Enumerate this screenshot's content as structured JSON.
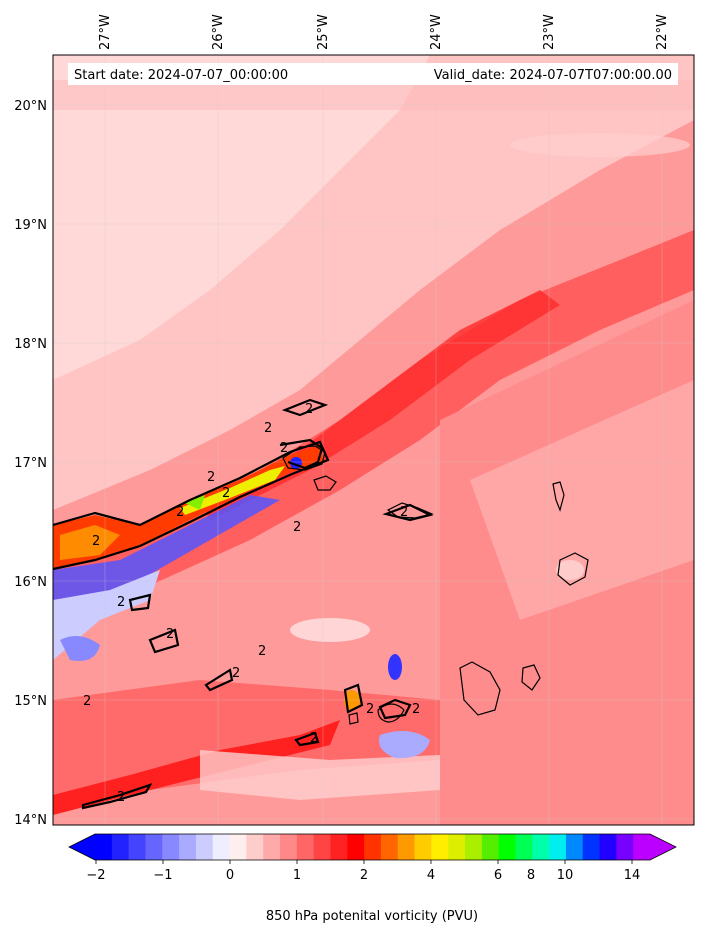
{
  "header": {
    "start_date": "Start date: 2024-07-07_00:00:00",
    "valid_date": "Valid_date: 2024-07-07T07:00:00.00"
  },
  "map": {
    "lon_labels": [
      "27°W",
      "26°W",
      "25°W",
      "24°W",
      "23°W",
      "22°W"
    ],
    "lat_labels": [
      "20°N",
      "19°N",
      "18°N",
      "17°N",
      "16°N",
      "15°N",
      "14°N"
    ],
    "contour_label": "2"
  },
  "colorbar": {
    "label": "850 hPa potenital vorticity (PVU)",
    "tick_labels": [
      "−2",
      "−1",
      "0",
      "1",
      "2",
      "4",
      "6",
      "8",
      "10",
      "14"
    ],
    "colors": [
      "#0000ff",
      "#2222ff",
      "#4444ff",
      "#6666ff",
      "#8888ff",
      "#aaaaff",
      "#ccccff",
      "#eeeeff",
      "#ffeeee",
      "#ffcccc",
      "#ffaaaa",
      "#ff8888",
      "#ff6666",
      "#ff4444",
      "#ff2222",
      "#ff0000",
      "#ff3300",
      "#ff6600",
      "#ff9900",
      "#ffcc00",
      "#ffee00",
      "#ddee00",
      "#aaee00",
      "#55ee00",
      "#00ff00",
      "#00ff55",
      "#00ffaa",
      "#00eeee",
      "#0088ff",
      "#0033ff",
      "#2200ff",
      "#7700ff",
      "#bb00ff"
    ]
  }
}
